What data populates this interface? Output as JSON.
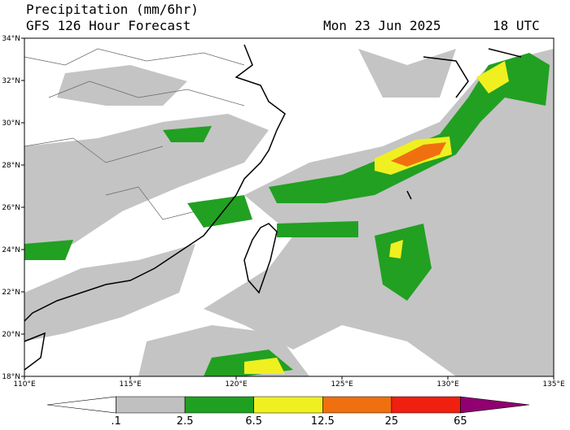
{
  "header": {
    "title": "Precipitation (mm/6hr)",
    "subtitle": "GFS 126 Hour Forecast",
    "date": "Mon 23 Jun 2025",
    "time": "18 UTC"
  },
  "axes": {
    "lat_labels": [
      "34°N",
      "32°N",
      "30°N",
      "28°N",
      "26°N",
      "24°N",
      "22°N",
      "20°N",
      "18°N"
    ],
    "lon_labels": [
      "110°E",
      "115°E",
      "120°E",
      "125°E",
      "130°E",
      "135°E"
    ]
  },
  "legend": {
    "labels": [
      ".1",
      "2.5",
      "6.5",
      "12.5",
      "25",
      "65"
    ],
    "colors": [
      "#ffffff",
      "#c0c0c0",
      "#20a020",
      "#f0f020",
      "#f07010",
      "#f02010",
      "#900070"
    ]
  }
}
